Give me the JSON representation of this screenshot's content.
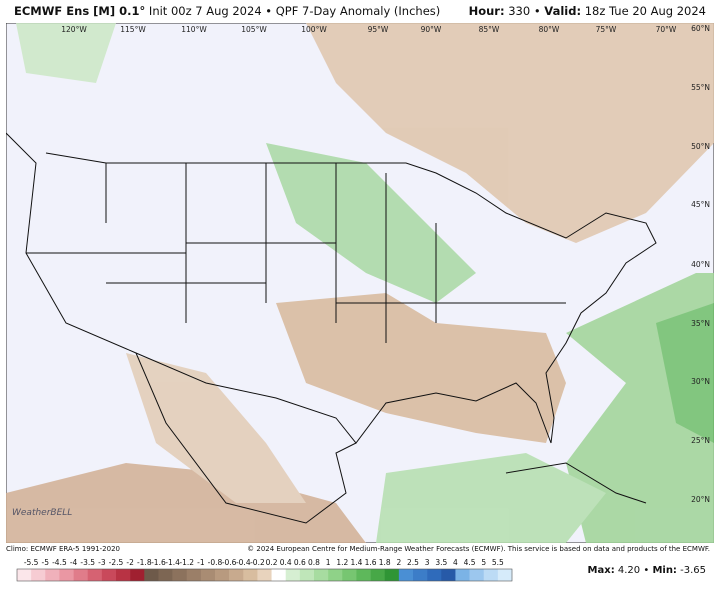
{
  "header": {
    "model": "ECMWF Ens [M] 0.1°",
    "init": "Init 00z 7 Aug 2024",
    "separator": "•",
    "product": "QPF 7-Day Anomaly (Inches)",
    "hour_label": "Hour:",
    "hour": "330",
    "valid_label": "Valid:",
    "valid": "18z Tue 20 Aug 2024"
  },
  "map": {
    "lon_labels": [
      "120°W",
      "115°W",
      "110°W",
      "105°W",
      "100°W",
      "95°W",
      "90°W",
      "85°W",
      "80°W",
      "75°W",
      "70°W"
    ],
    "lat_labels": [
      "60°N",
      "55°N",
      "50°N",
      "45°N",
      "40°N",
      "35°N",
      "30°N",
      "25°N",
      "20°N"
    ],
    "logo": "WeatherBELL"
  },
  "footer": {
    "climo": "Climo: ECMWF ERA-5 1991-2020",
    "copyright": "© 2024 European Centre for Medium-Range Weather Forecasts (ECMWF). This service is based on data and products of the ECMWF.",
    "max_label": "Max:",
    "max": "4.20",
    "min_label": "Min:",
    "min": "-3.65"
  },
  "colorbar": {
    "labels": [
      "-5.5",
      "-5",
      "-4.5",
      "-4",
      "-3.5",
      "-3",
      "-2.5",
      "-2",
      "-1.8",
      "-1.6",
      "-1.4",
      "-1.2",
      "-1",
      "-0.8",
      "-0.6",
      "-0.4",
      "-0.2",
      "0.2",
      "0.4",
      "0.6",
      "0.8",
      "1",
      "1.2",
      "1.4",
      "1.6",
      "1.8",
      "2",
      "2.5",
      "3",
      "3.5",
      "4",
      "4.5",
      "5",
      "5.5"
    ],
    "colors": [
      "#fbe6ea",
      "#f6ccd3",
      "#f0b1bb",
      "#ea97a3",
      "#e07c8a",
      "#d66272",
      "#c9495b",
      "#b83344",
      "#a02030",
      "#6e5a4a",
      "#7d6653",
      "#8c725d",
      "#9b7f68",
      "#a98c73",
      "#b89a7f",
      "#c8aa8e",
      "#d8bd9f",
      "#e8d3bd",
      "#ffffff",
      "#d6efd2",
      "#bfe6b9",
      "#a7dca0",
      "#8fd288",
      "#77c671",
      "#5eb85b",
      "#47a847",
      "#2f9535",
      "#4a8fd4",
      "#3c7dc8",
      "#2f6bbb",
      "#275aa8",
      "#7bb3e6",
      "#9cc7ee",
      "#bcdbf5",
      "#d6ebfa"
    ]
  }
}
